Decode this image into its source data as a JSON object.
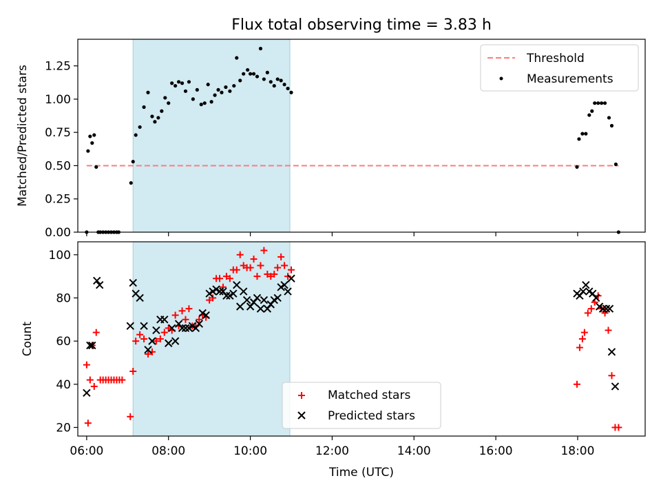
{
  "chart_data": [
    {
      "type": "scatter",
      "title": "Flux total observing time = 3.83 h",
      "xlabel": "",
      "ylabel": "Matched/Predicted stars",
      "xlim": [
        "05:47",
        "19:39"
      ],
      "ylim": [
        0,
        1.45
      ],
      "yticks": [
        "0.00",
        "0.25",
        "0.50",
        "0.75",
        "1.00",
        "1.25"
      ],
      "xticks": [
        "06:00",
        "08:00",
        "10:00",
        "12:00",
        "14:00",
        "16:00",
        "18:00"
      ],
      "shaded_region": {
        "from": "07:08",
        "to": "10:58"
      },
      "legend_position": "upper right",
      "threshold": {
        "name": "Threshold",
        "value": 0.5,
        "from": "06:00",
        "to": "19:00",
        "color": "#ff7a7a"
      },
      "series": [
        {
          "name": "Measurements",
          "color": "#000000",
          "points": [
            [
              "06:00",
              0.0
            ],
            [
              "06:02",
              0.61
            ],
            [
              "06:05",
              0.72
            ],
            [
              "06:08",
              0.67
            ],
            [
              "06:11",
              0.73
            ],
            [
              "06:14",
              0.49
            ],
            [
              "06:17",
              0.0
            ],
            [
              "06:20",
              0.0
            ],
            [
              "06:24",
              0.0
            ],
            [
              "06:28",
              0.0
            ],
            [
              "06:32",
              0.0
            ],
            [
              "06:36",
              0.0
            ],
            [
              "06:40",
              0.0
            ],
            [
              "06:44",
              0.0
            ],
            [
              "06:47",
              0.0
            ],
            [
              "07:05",
              0.37
            ],
            [
              "07:08",
              0.53
            ],
            [
              "07:12",
              0.73
            ],
            [
              "07:18",
              0.79
            ],
            [
              "07:24",
              0.94
            ],
            [
              "07:30",
              1.05
            ],
            [
              "07:36",
              0.87
            ],
            [
              "07:40",
              0.83
            ],
            [
              "07:45",
              0.86
            ],
            [
              "07:50",
              0.91
            ],
            [
              "07:55",
              1.01
            ],
            [
              "08:00",
              0.97
            ],
            [
              "08:05",
              1.12
            ],
            [
              "08:10",
              1.1
            ],
            [
              "08:15",
              1.13
            ],
            [
              "08:20",
              1.12
            ],
            [
              "08:25",
              1.06
            ],
            [
              "08:30",
              1.13
            ],
            [
              "08:36",
              1.0
            ],
            [
              "08:42",
              1.07
            ],
            [
              "08:48",
              0.96
            ],
            [
              "08:53",
              0.97
            ],
            [
              "08:58",
              1.11
            ],
            [
              "09:03",
              0.98
            ],
            [
              "09:08",
              1.03
            ],
            [
              "09:13",
              1.07
            ],
            [
              "09:18",
              1.05
            ],
            [
              "09:24",
              1.09
            ],
            [
              "09:30",
              1.06
            ],
            [
              "09:36",
              1.1
            ],
            [
              "09:40",
              1.31
            ],
            [
              "09:45",
              1.14
            ],
            [
              "09:50",
              1.19
            ],
            [
              "09:56",
              1.22
            ],
            [
              "10:00",
              1.19
            ],
            [
              "10:05",
              1.19
            ],
            [
              "10:10",
              1.17
            ],
            [
              "10:15",
              1.38
            ],
            [
              "10:20",
              1.15
            ],
            [
              "10:25",
              1.2
            ],
            [
              "10:30",
              1.13
            ],
            [
              "10:35",
              1.1
            ],
            [
              "10:40",
              1.15
            ],
            [
              "10:45",
              1.14
            ],
            [
              "10:50",
              1.11
            ],
            [
              "10:55",
              1.08
            ],
            [
              "11:00",
              1.05
            ],
            [
              "17:59",
              0.49
            ],
            [
              "18:02",
              0.7
            ],
            [
              "18:07",
              0.74
            ],
            [
              "18:12",
              0.74
            ],
            [
              "18:17",
              0.88
            ],
            [
              "18:21",
              0.91
            ],
            [
              "18:25",
              0.97
            ],
            [
              "18:30",
              0.97
            ],
            [
              "18:35",
              0.97
            ],
            [
              "18:40",
              0.97
            ],
            [
              "18:46",
              0.86
            ],
            [
              "18:50",
              0.8
            ],
            [
              "18:56",
              0.51
            ],
            [
              "19:00",
              0.0
            ]
          ]
        }
      ]
    },
    {
      "type": "scatter",
      "title": "",
      "xlabel": "Time (UTC)",
      "ylabel": "Count",
      "xlim": [
        "05:47",
        "19:39"
      ],
      "ylim": [
        16,
        106
      ],
      "yticks": [
        "20",
        "40",
        "60",
        "80",
        "100"
      ],
      "xticks": [
        "06:00",
        "08:00",
        "10:00",
        "12:00",
        "14:00",
        "16:00",
        "18:00"
      ],
      "shaded_region": {
        "from": "07:08",
        "to": "10:58"
      },
      "legend_position": "lower center",
      "series": [
        {
          "name": "Matched stars",
          "marker": "plus",
          "color": "#ff0000",
          "points": [
            [
              "06:00",
              49
            ],
            [
              "06:02",
              22
            ],
            [
              "06:05",
              42
            ],
            [
              "06:08",
              58
            ],
            [
              "06:11",
              39
            ],
            [
              "06:14",
              64
            ],
            [
              "06:20",
              42
            ],
            [
              "06:24",
              42
            ],
            [
              "06:28",
              42
            ],
            [
              "06:32",
              42
            ],
            [
              "06:36",
              42
            ],
            [
              "06:40",
              42
            ],
            [
              "06:44",
              42
            ],
            [
              "06:48",
              42
            ],
            [
              "06:52",
              42
            ],
            [
              "07:04",
              25
            ],
            [
              "07:08",
              46
            ],
            [
              "07:12",
              60
            ],
            [
              "07:18",
              63
            ],
            [
              "07:24",
              61
            ],
            [
              "07:30",
              54
            ],
            [
              "07:36",
              55
            ],
            [
              "07:42",
              60
            ],
            [
              "07:48",
              61
            ],
            [
              "07:54",
              64
            ],
            [
              "08:00",
              66
            ],
            [
              "08:05",
              65
            ],
            [
              "08:10",
              72
            ],
            [
              "08:15",
              67
            ],
            [
              "08:20",
              74
            ],
            [
              "08:25",
              70
            ],
            [
              "08:30",
              75
            ],
            [
              "08:35",
              67
            ],
            [
              "08:40",
              67
            ],
            [
              "08:45",
              70
            ],
            [
              "08:50",
              72
            ],
            [
              "08:55",
              71
            ],
            [
              "09:00",
              79
            ],
            [
              "09:05",
              80
            ],
            [
              "09:10",
              89
            ],
            [
              "09:15",
              89
            ],
            [
              "09:20",
              85
            ],
            [
              "09:25",
              90
            ],
            [
              "09:30",
              89
            ],
            [
              "09:35",
              93
            ],
            [
              "09:40",
              93
            ],
            [
              "09:45",
              100
            ],
            [
              "09:50",
              95
            ],
            [
              "09:55",
              94
            ],
            [
              "10:00",
              94
            ],
            [
              "10:05",
              98
            ],
            [
              "10:10",
              90
            ],
            [
              "10:15",
              95
            ],
            [
              "10:20",
              102
            ],
            [
              "10:25",
              91
            ],
            [
              "10:30",
              90
            ],
            [
              "10:35",
              91
            ],
            [
              "10:40",
              94
            ],
            [
              "10:45",
              99
            ],
            [
              "10:50",
              95
            ],
            [
              "10:55",
              90
            ],
            [
              "11:00",
              93
            ],
            [
              "17:59",
              40
            ],
            [
              "18:03",
              57
            ],
            [
              "18:07",
              61
            ],
            [
              "18:10",
              64
            ],
            [
              "18:15",
              73
            ],
            [
              "18:20",
              75
            ],
            [
              "18:25",
              78
            ],
            [
              "18:30",
              81
            ],
            [
              "18:35",
              75
            ],
            [
              "18:40",
              73
            ],
            [
              "18:45",
              65
            ],
            [
              "18:50",
              44
            ],
            [
              "18:55",
              20
            ],
            [
              "19:00",
              20
            ]
          ]
        },
        {
          "name": "Predicted stars",
          "marker": "x",
          "color": "#000000",
          "points": [
            [
              "06:00",
              36
            ],
            [
              "06:05",
              58
            ],
            [
              "06:08",
              58
            ],
            [
              "06:15",
              88
            ],
            [
              "06:19",
              86
            ],
            [
              "07:04",
              67
            ],
            [
              "07:08",
              87
            ],
            [
              "07:12",
              82
            ],
            [
              "07:18",
              80
            ],
            [
              "07:24",
              67
            ],
            [
              "07:30",
              56
            ],
            [
              "07:36",
              60
            ],
            [
              "07:42",
              65
            ],
            [
              "07:48",
              70
            ],
            [
              "07:54",
              70
            ],
            [
              "08:00",
              59
            ],
            [
              "08:05",
              66
            ],
            [
              "08:10",
              60
            ],
            [
              "08:15",
              68
            ],
            [
              "08:20",
              66
            ],
            [
              "08:25",
              66
            ],
            [
              "08:30",
              66
            ],
            [
              "08:35",
              67
            ],
            [
              "08:40",
              66
            ],
            [
              "08:45",
              68
            ],
            [
              "08:50",
              73
            ],
            [
              "08:55",
              72
            ],
            [
              "09:00",
              82
            ],
            [
              "09:05",
              83
            ],
            [
              "09:10",
              84
            ],
            [
              "09:15",
              83
            ],
            [
              "09:20",
              83
            ],
            [
              "09:25",
              81
            ],
            [
              "09:30",
              81
            ],
            [
              "09:35",
              82
            ],
            [
              "09:40",
              86
            ],
            [
              "09:45",
              76
            ],
            [
              "09:50",
              83
            ],
            [
              "09:55",
              79
            ],
            [
              "10:00",
              76
            ],
            [
              "10:05",
              78
            ],
            [
              "10:10",
              80
            ],
            [
              "10:15",
              75
            ],
            [
              "10:20",
              79
            ],
            [
              "10:25",
              75
            ],
            [
              "10:30",
              77
            ],
            [
              "10:35",
              79
            ],
            [
              "10:40",
              80
            ],
            [
              "10:45",
              85
            ],
            [
              "10:50",
              86
            ],
            [
              "10:55",
              83
            ],
            [
              "11:00",
              89
            ],
            [
              "17:59",
              82
            ],
            [
              "18:03",
              81
            ],
            [
              "18:08",
              83
            ],
            [
              "18:12",
              86
            ],
            [
              "18:17",
              83
            ],
            [
              "18:22",
              82
            ],
            [
              "18:27",
              80
            ],
            [
              "18:32",
              76
            ],
            [
              "18:37",
              75
            ],
            [
              "18:42",
              75
            ],
            [
              "18:47",
              75
            ],
            [
              "18:50",
              55
            ],
            [
              "18:55",
              39
            ]
          ]
        }
      ]
    }
  ]
}
